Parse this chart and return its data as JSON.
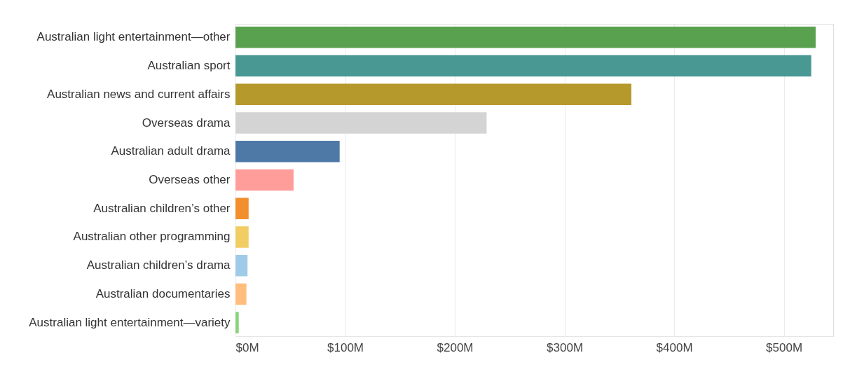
{
  "chart_data": {
    "type": "bar",
    "orientation": "horizontal",
    "categories": [
      "Australian light entertainment—other",
      "Australian sport",
      "Australian news and current affairs",
      "Overseas drama",
      "Australian adult drama",
      "Overseas other",
      "Australian children’s other",
      "Australian other programming",
      "Australian children’s drama",
      "Australian documentaries",
      "Australian light entertainment—variety"
    ],
    "values": [
      529,
      525,
      361,
      229,
      95,
      53,
      12,
      12,
      11,
      10,
      3
    ],
    "colors": [
      "#59a14f",
      "#499894",
      "#b6992d",
      "#d4d4d4",
      "#4e79a7",
      "#ff9d9a",
      "#f28e2b",
      "#f1ce63",
      "#a0cbe8",
      "#ffbe7d",
      "#8cd17d"
    ],
    "xlim": [
      0,
      545
    ],
    "xticks": [
      {
        "value": 0,
        "label": "$0M"
      },
      {
        "value": 100,
        "label": "$100M"
      },
      {
        "value": 200,
        "label": "$200M"
      },
      {
        "value": 300,
        "label": "$300M"
      },
      {
        "value": 400,
        "label": "$400M"
      },
      {
        "value": 500,
        "label": "$500M"
      }
    ],
    "grid": "x"
  }
}
